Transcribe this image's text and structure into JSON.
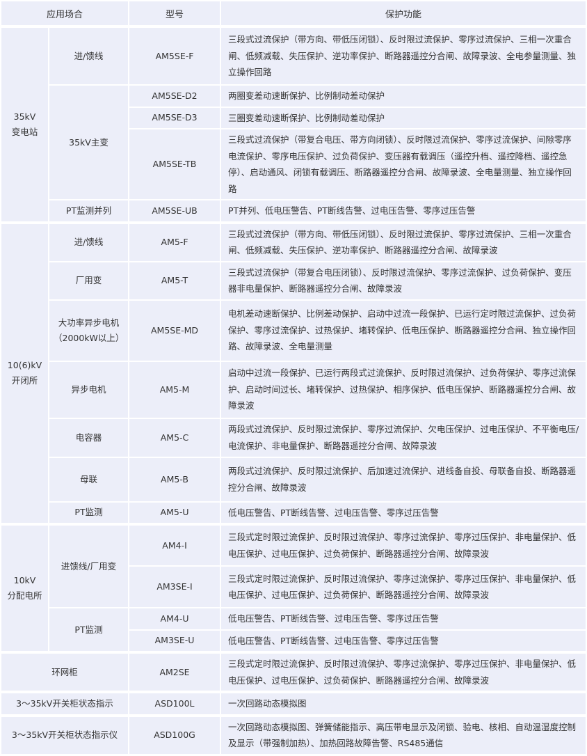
{
  "header": {
    "application": "应用场合",
    "model": "型号",
    "function": "保护功能"
  },
  "sections": [
    {
      "name": "35kV\n变电站",
      "subs": [
        {
          "name": "进/馈线",
          "models": [
            {
              "model": "AM5SE-F",
              "functions": "三段式过流保护（带方向、带低压闭锁）、反时限过流保护、零序过流保护、三相一次重合闸、低频减载、失压保护、逆功率保护、断路器遥控分合闸、故障录波、全电参量测量、独立操作回路"
            }
          ]
        },
        {
          "name": "35kV主变",
          "models": [
            {
              "model": "AM5SE-D2",
              "functions": "两圈变差动速断保护、比例制动差动保护"
            },
            {
              "model": "AM5SE-D3",
              "functions": "三圈变差动速断保护、比例制动差动保护"
            },
            {
              "model": "AM5SE-TB",
              "functions": "三段式过流保护（带复合电压、带方向闭锁）、反时限过流保护、零序过流保护、间隙零序电流保护、零序电压保护、过负荷保护、变压器有载调压（遥控升档、遥控降档、遥控急停）、启动通风、闭锁有载调压、断路器遥控分合闸、故障录波、全电量测量、独立操作回路"
            }
          ]
        },
        {
          "name": "PT监测并列",
          "models": [
            {
              "model": "AM5SE-UB",
              "functions": "PT并列、低电压警告、PT断线告警、过电压告警、零序过压告警"
            }
          ]
        }
      ]
    },
    {
      "name": "10(6)kV\n开闭所",
      "subs": [
        {
          "name": "进/馈线",
          "models": [
            {
              "model": "AM5-F",
              "functions": "三段式过流保护（带方向、带低压闭锁）、反时限过流保护、零序过流保护、三相一次重合闸、低频减载、失压保护、逆功率保护、断路器遥控分合闸、故障录波"
            }
          ]
        },
        {
          "name": "厂用变",
          "models": [
            {
              "model": "AM5-T",
              "functions": "三段式过流保护（带复合电压闭锁）、反时限过流保护、零序过流保护、过负荷保护、变压器非电量保护、断路器遥控分合闸、故障录波"
            }
          ]
        },
        {
          "name": "大功率异步电机（2000kW以上）",
          "models": [
            {
              "model": "AM5SE-MD",
              "functions": "电机差动速断保护、比例差动保护、启动中过流一段保护、已运行定时限过流保护、过负荷保护、零序过流保护、过热保护、堵转保护、低电压保护、断路器遥控分合闸、独立操作回路、故障录波、全电量测量"
            }
          ]
        },
        {
          "name": "异步电机",
          "models": [
            {
              "model": "AM5-M",
              "functions": "启动中过流一段保护、已运行两段式过流保护、反时限过流保护、过负荷保护、零序过流保护、启动时间过长、堵转保护、过热保护、相序保护、低电压保护、断路器遥控分合闸、故障录波"
            }
          ]
        },
        {
          "name": "电容器",
          "models": [
            {
              "model": "AM5-C",
              "functions": "两段式过流保护、反时限过流保护、零序过流保护、欠电压保护、过电压保护、不平衡电压/电流保护、非电量保护、断路器遥控分合闸、故障录波"
            }
          ]
        },
        {
          "name": "母联",
          "models": [
            {
              "model": "AM5-B",
              "functions": "两段式过流保护、反时限过流保护、后加速过流保护、进线备自投、母联备自投、断路器遥控分合闸、故障录波"
            }
          ]
        },
        {
          "name": "PT监测",
          "models": [
            {
              "model": "AM5-U",
              "functions": "低电压警告、PT断线告警、过电压告警、零序过压告警"
            }
          ]
        }
      ]
    },
    {
      "name": "10kV\n分配电所",
      "subs": [
        {
          "name": "进馈线/厂用变",
          "models": [
            {
              "model": "AM4-I",
              "functions": "三段式定时限过流保护、反时限过流保护、零序过流保护、零序过压保护、非电量保护、低电压保护、过电压保护、过负荷保护、断路器遥控分合闸、故障录波"
            },
            {
              "model": "AM3SE-I",
              "functions": "三段式定时限过流保护、反时限过流保护、零序过流保护、零序过压保护、非电量保护、低电压保护、过电压保护、过负荷保护、断路器遥控分合闸、故障录波"
            }
          ]
        },
        {
          "name": "PT监测",
          "models": [
            {
              "model": "AM4-U",
              "functions": "低电压警告、PT断线告警、过电压告警、零序过压告警"
            },
            {
              "model": "AM3SE-U",
              "functions": "低电压警告、PT断线告警、过电压告警、零序过压告警"
            }
          ]
        }
      ]
    }
  ],
  "single_rows": [
    {
      "name": "环网柜",
      "model": "AM2SE",
      "functions": "三段式定时限过流保护、反时限过流保护、零序过流保护、零序过压保护、非电量保护、低电压保护、过电压保护、过负荷保护、断路器遥控分合闸、故障录波"
    },
    {
      "name": "3～35kV开关柜状态指示",
      "model": "ASD100L",
      "functions": "一次回路动态模拟图"
    },
    {
      "name": "3～35kV开关柜状态指示仪",
      "model": "ASD100G",
      "functions": "一次回路动态模拟图、弹簧储能指示、高压带电显示及闭锁、验电、核相、自动温湿度控制及显示（带强制加热）、加热回路故障告警、RS485通信"
    }
  ]
}
